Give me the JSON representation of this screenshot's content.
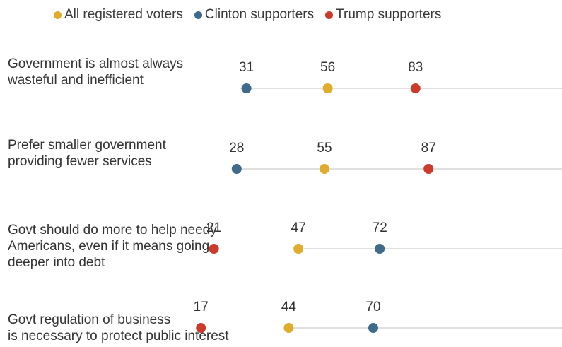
{
  "chart_data": {
    "type": "scatter",
    "title": "",
    "xlabel": "",
    "ylabel": "",
    "xlim": [
      0,
      100
    ],
    "legend_position": "top",
    "grid": false,
    "series": [
      {
        "name": "All registered voters",
        "color": "#e0ac2b",
        "values": [
          56,
          55,
          47,
          44
        ]
      },
      {
        "name": "Clinton supporters",
        "color": "#3e6b8a",
        "values": [
          31,
          28,
          72,
          70
        ]
      },
      {
        "name": "Trump supporters",
        "color": "#cc3a2b",
        "values": [
          83,
          87,
          21,
          17
        ]
      }
    ],
    "categories": [
      "Government is almost always wasteful and inefficient",
      "Prefer smaller government providing fewer services",
      "Govt should do more to help needy Americans, even if it means going deeper into debt",
      "Govt regulation of business is necessary to protect public interest"
    ]
  },
  "rows": [
    {
      "lines": [
        "Government is almost always",
        "wasteful and inefficient"
      ]
    },
    {
      "lines": [
        "Prefer smaller government",
        "providing fewer services"
      ]
    },
    {
      "lines": [
        "Govt should do more to help needy",
        "Americans, even if it means going",
        "deeper into debt"
      ]
    },
    {
      "lines": [
        "Govt regulation of business",
        "is necessary to protect public interest"
      ]
    }
  ]
}
